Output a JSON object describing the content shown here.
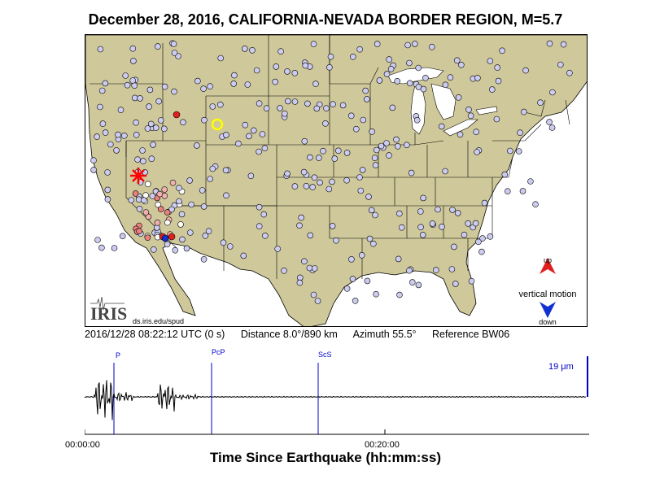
{
  "title": "December 28, 2016, CALIFORNIA-NEVADA BORDER REGION, M=5.7",
  "info": {
    "datetime": "2016/12/28 08:22:12 UTC (0 s)",
    "distance": "Distance   8.0°/890 km",
    "azimuth": "Azimuth   55.5°",
    "reference": "Reference BW06"
  },
  "logo": {
    "text": "IRIS",
    "url": "ds.iris.edu/spud"
  },
  "legend": {
    "up": "up",
    "motion": "vertical motion",
    "down": "down",
    "up_color": "#e02020",
    "down_color": "#1030d0"
  },
  "phases": [
    "P",
    "PcP",
    "ScS"
  ],
  "scale_label": "19 μm",
  "time_ticks": [
    "00:00:00",
    "00:20:00"
  ],
  "xlabel": "Time Since Earthquake (hh:mm:ss)",
  "colors": {
    "land": "#cfc89a",
    "water": "#ffffff",
    "station": "#ccccf0",
    "reference": "#ffff00",
    "epicenter": "#ff0000",
    "phase_line": "#0000cc"
  }
}
